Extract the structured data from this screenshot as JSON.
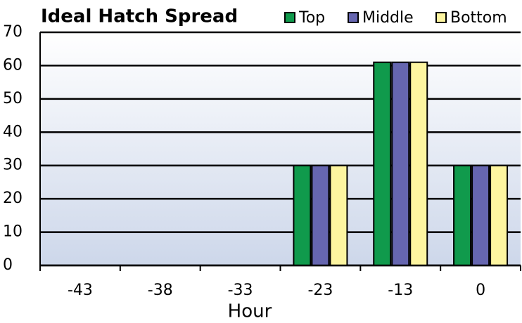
{
  "chart_data": {
    "type": "bar",
    "title": "Ideal Hatch Spread",
    "x_label": "Hour",
    "categories": [
      "-43",
      "-38",
      "-33",
      "-23",
      "-13",
      "0"
    ],
    "series": [
      {
        "name": "Top",
        "color": "#109a4c",
        "values": [
          0,
          0,
          0,
          30,
          61,
          30
        ]
      },
      {
        "name": "Middle",
        "color": "#6666b0",
        "values": [
          0,
          0,
          0,
          30,
          61,
          30
        ]
      },
      {
        "name": "Bottom",
        "color": "#fdf5a0",
        "values": [
          0,
          0,
          0,
          30,
          61,
          30
        ]
      }
    ],
    "ylim": [
      0,
      70
    ],
    "yticks": [
      0,
      10,
      20,
      30,
      40,
      50,
      60,
      70
    ],
    "grid": true,
    "legend": "top-right"
  }
}
